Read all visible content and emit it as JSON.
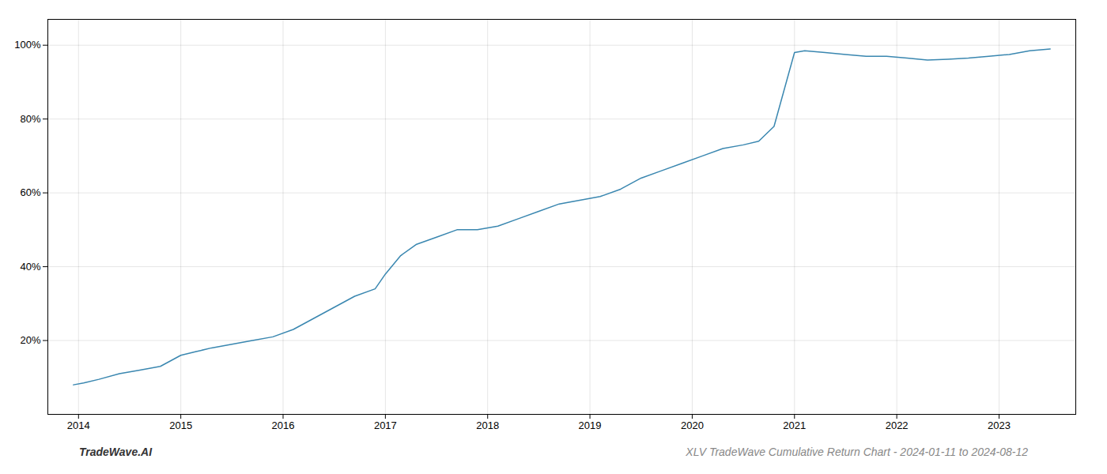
{
  "chart_data": {
    "type": "line",
    "title": "XLV TradeWave Cumulative Return Chart - 2024-01-11 to 2024-08-12",
    "annotations": [
      "TradeWave.AI"
    ],
    "color": "#3a87b0",
    "grid": true,
    "x": [
      2013.95,
      2014.05,
      2014.2,
      2014.4,
      2014.6,
      2014.8,
      2015.0,
      2015.15,
      2015.3,
      2015.5,
      2015.7,
      2015.9,
      2016.1,
      2016.3,
      2016.5,
      2016.7,
      2016.9,
      2017.0,
      2017.15,
      2017.3,
      2017.5,
      2017.7,
      2017.9,
      2018.1,
      2018.3,
      2018.5,
      2018.7,
      2018.9,
      2019.1,
      2019.3,
      2019.5,
      2019.7,
      2019.9,
      2020.1,
      2020.3,
      2020.5,
      2020.65,
      2020.8,
      2020.9,
      2021.0,
      2021.1,
      2021.3,
      2021.5,
      2021.7,
      2021.9,
      2022.1,
      2022.3,
      2022.5,
      2022.7,
      2022.9,
      2023.1,
      2023.3,
      2023.5
    ],
    "values": [
      8,
      8.5,
      9.5,
      11,
      12,
      13,
      16,
      17,
      18,
      19,
      20,
      21,
      23,
      26,
      29,
      32,
      34,
      38,
      43,
      46,
      48,
      50,
      50,
      51,
      53,
      55,
      57,
      58,
      59,
      61,
      64,
      66,
      68,
      70,
      72,
      73,
      74,
      78,
      88,
      98,
      98.5,
      98,
      97.5,
      97,
      97,
      96.5,
      96,
      96.2,
      96.5,
      97,
      97.5,
      98.5,
      99
    ],
    "xlim": [
      2013.7,
      2023.75
    ],
    "xticks": [
      2014,
      2015,
      2016,
      2017,
      2018,
      2019,
      2020,
      2021,
      2022,
      2023
    ],
    "ylim": [
      0,
      107
    ],
    "yticks": [
      {
        "value": 20,
        "label": "20%"
      },
      {
        "value": 40,
        "label": "40%"
      },
      {
        "value": 60,
        "label": "60%"
      },
      {
        "value": 80,
        "label": "80%"
      },
      {
        "value": 100,
        "label": "100%"
      }
    ]
  }
}
